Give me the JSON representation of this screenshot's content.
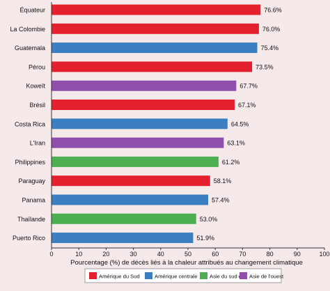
{
  "chart_data": {
    "type": "bar",
    "orientation": "horizontal",
    "categories": [
      "Équateur",
      "La Colombie",
      "Guatemala",
      "Pérou",
      "Koweït",
      "Brésil",
      "Costa Rica",
      "L'Iran",
      "Philippines",
      "Paraguay",
      "Panama",
      "Thaïlande",
      "Puerto Rico"
    ],
    "values": [
      76.6,
      76.0,
      75.4,
      73.5,
      67.7,
      67.1,
      64.5,
      63.1,
      61.2,
      58.1,
      57.4,
      53.0,
      51.9
    ],
    "value_labels": [
      "76.6%",
      "76.0%",
      "75.4%",
      "73.5%",
      "67.7%",
      "67.1%",
      "64.5%",
      "63.1%",
      "61.2%",
      "58.1%",
      "57.4%",
      "53.0%",
      "51.9%"
    ],
    "groups": [
      "Amérique du Sud",
      "Amérique du Sud",
      "Amérique centrale",
      "Amérique du Sud",
      "Asie de l'ouest",
      "Amérique du Sud",
      "Amérique centrale",
      "Asie de l'ouest",
      "Asie du sud est",
      "Amérique du Sud",
      "Amérique centrale",
      "Asie du sud est",
      "Amérique centrale"
    ],
    "legend": [
      {
        "name": "Amérique du Sud",
        "color": "#e5202e"
      },
      {
        "name": "Amérique centrale",
        "color": "#3b7fc1"
      },
      {
        "name": "Asie du sud est",
        "color": "#4caf50"
      },
      {
        "name": "Asie de l'ouest",
        "color": "#8e4fab"
      }
    ],
    "legend_placement": "bottom",
    "xlabel": "Pourcentage (%) de décès liés à la chaleur attribués au changement climatique",
    "ylabel": "",
    "title": "",
    "xlim": [
      0,
      100
    ],
    "xticks": [
      0,
      10,
      20,
      30,
      40,
      50,
      60,
      70,
      80,
      90,
      100
    ],
    "grid": false
  }
}
